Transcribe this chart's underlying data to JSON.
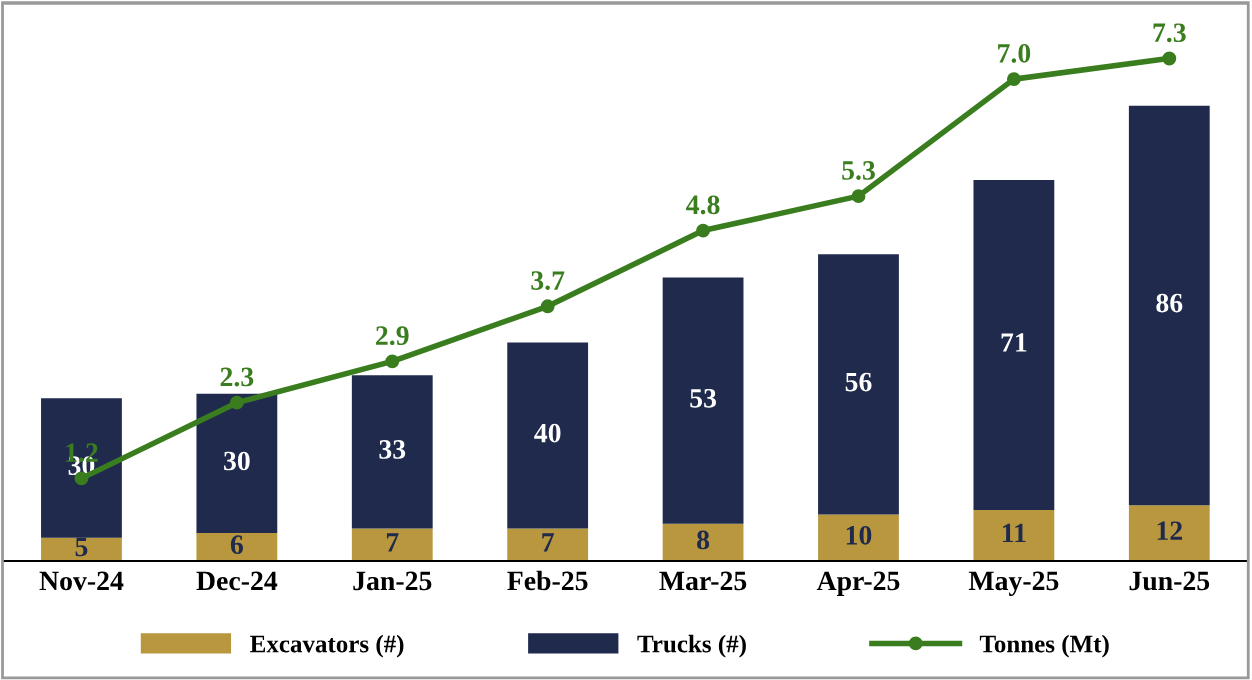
{
  "chart_data": {
    "type": "bar",
    "stacked": true,
    "categories": [
      "Nov-24",
      "Dec-24",
      "Jan-25",
      "Feb-25",
      "Mar-25",
      "Apr-25",
      "May-25",
      "Jun-25"
    ],
    "series": [
      {
        "name": "Excavators (#)",
        "color": "#b8973f",
        "values": [
          5,
          6,
          7,
          7,
          8,
          10,
          11,
          12
        ]
      },
      {
        "name": "Trucks (#)",
        "color": "#1f2a4d",
        "values": [
          30,
          30,
          33,
          40,
          53,
          56,
          71,
          86
        ]
      },
      {
        "name": "Tonnes (Mt)",
        "type": "line",
        "axis": "y2",
        "color": "#3a7d1e",
        "marker": "circle",
        "values": [
          1.2,
          2.3,
          2.9,
          3.7,
          4.8,
          5.3,
          7.0,
          7.3
        ],
        "value_labels": [
          "1.2",
          "2.3",
          "2.9",
          "3.7",
          "4.8",
          "5.3",
          "7.0",
          "7.3"
        ]
      }
    ],
    "ylim": [
      0,
      120
    ],
    "y2lim": [
      0,
      8.1
    ],
    "tick_labels": "x",
    "data_labels": true,
    "grid": false,
    "legend": "bottom"
  }
}
